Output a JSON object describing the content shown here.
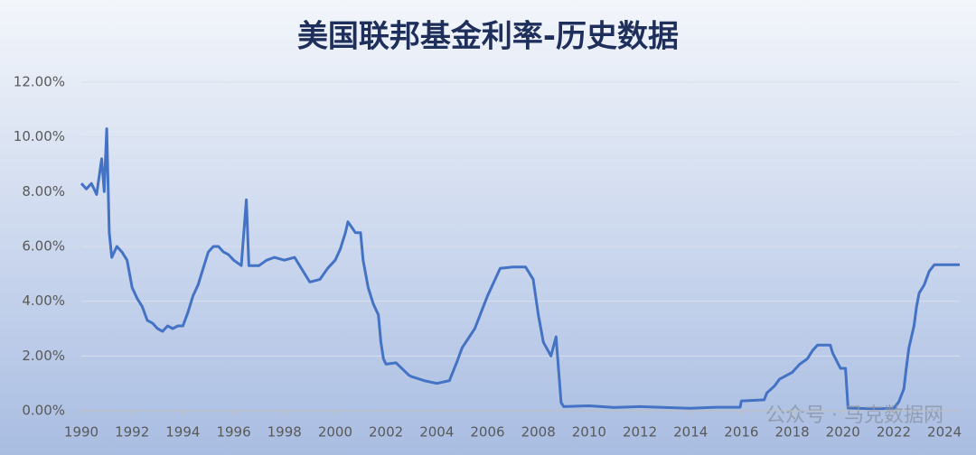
{
  "chart_data": {
    "type": "line",
    "title": "美国联邦基金利率-历史数据",
    "watermark": "公众号 · 马克数据网",
    "xlim": [
      1990,
      2024.6
    ],
    "xticks": [
      1990,
      1992,
      1994,
      1996,
      1998,
      2000,
      2002,
      2004,
      2006,
      2008,
      2010,
      2012,
      2014,
      2016,
      2018,
      2020,
      2022,
      2024
    ],
    "ylim": [
      0,
      12
    ],
    "yticks": [
      {
        "value": 0,
        "label": "0.00%"
      },
      {
        "value": 2,
        "label": "2.00%"
      },
      {
        "value": 4,
        "label": "4.00%"
      },
      {
        "value": 6,
        "label": "6.00%"
      },
      {
        "value": 8,
        "label": "8.00%"
      },
      {
        "value": 10,
        "label": "10.00%"
      },
      {
        "value": 12,
        "label": "12.00%"
      }
    ],
    "grid": true,
    "series": [
      {
        "color": "#4472c4",
        "x": [
          1990.0,
          1990.2,
          1990.4,
          1990.6,
          1990.8,
          1990.9,
          1991.0,
          1991.1,
          1991.2,
          1991.4,
          1991.6,
          1991.8,
          1992.0,
          1992.2,
          1992.4,
          1992.6,
          1992.8,
          1993.0,
          1993.2,
          1993.4,
          1993.6,
          1993.8,
          1994.0,
          1994.2,
          1994.4,
          1994.6,
          1994.8,
          1995.0,
          1995.2,
          1995.4,
          1995.6,
          1995.8,
          1996.0,
          1996.3,
          1996.5,
          1996.6,
          1997.0,
          1997.3,
          1997.6,
          1998.0,
          1998.4,
          1998.8,
          1999.0,
          1999.4,
          1999.7,
          2000.0,
          2000.2,
          2000.4,
          2000.5,
          2000.8,
          2001.0,
          2001.1,
          2001.3,
          2001.5,
          2001.7,
          2001.8,
          2001.9,
          2002.0,
          2002.4,
          2002.9,
          2003.0,
          2003.5,
          2004.0,
          2004.5,
          2004.8,
          2005.0,
          2005.5,
          2006.0,
          2006.5,
          2007.0,
          2007.5,
          2007.8,
          2008.0,
          2008.2,
          2008.5,
          2008.7,
          2008.8,
          2008.9,
          2009.0,
          2010,
          2011,
          2012,
          2013,
          2014,
          2015,
          2015.95,
          2016.0,
          2016.9,
          2017.0,
          2017.3,
          2017.5,
          2018.0,
          2018.3,
          2018.6,
          2018.8,
          2019.0,
          2019.5,
          2019.6,
          2019.9,
          2020.1,
          2020.2,
          2021,
          2022.0,
          2022.2,
          2022.4,
          2022.5,
          2022.6,
          2022.8,
          2022.9,
          2023.0,
          2023.2,
          2023.4,
          2023.6,
          2024.6
        ],
        "values": [
          8.3,
          8.1,
          8.3,
          7.9,
          9.2,
          8.0,
          10.3,
          6.5,
          5.6,
          6.0,
          5.8,
          5.5,
          4.5,
          4.1,
          3.8,
          3.3,
          3.2,
          3.0,
          2.9,
          3.1,
          3.0,
          3.1,
          3.1,
          3.6,
          4.2,
          4.6,
          5.2,
          5.8,
          6.0,
          6.0,
          5.8,
          5.7,
          5.5,
          5.3,
          7.7,
          5.3,
          5.3,
          5.5,
          5.6,
          5.5,
          5.6,
          5.0,
          4.7,
          4.8,
          5.2,
          5.5,
          5.9,
          6.5,
          6.9,
          6.5,
          6.5,
          5.5,
          4.5,
          3.9,
          3.5,
          2.5,
          1.9,
          1.7,
          1.75,
          1.3,
          1.25,
          1.1,
          1.0,
          1.1,
          1.8,
          2.3,
          3.0,
          4.2,
          5.2,
          5.25,
          5.25,
          4.8,
          3.5,
          2.5,
          2.0,
          2.7,
          1.5,
          0.3,
          0.15,
          0.18,
          0.12,
          0.15,
          0.12,
          0.09,
          0.13,
          0.13,
          0.36,
          0.4,
          0.65,
          0.9,
          1.15,
          1.4,
          1.7,
          1.9,
          2.2,
          2.4,
          2.4,
          2.1,
          1.55,
          1.55,
          0.1,
          0.08,
          0.08,
          0.33,
          0.8,
          1.6,
          2.3,
          3.1,
          3.8,
          4.3,
          4.6,
          5.1,
          5.33,
          5.33
        ]
      }
    ]
  }
}
